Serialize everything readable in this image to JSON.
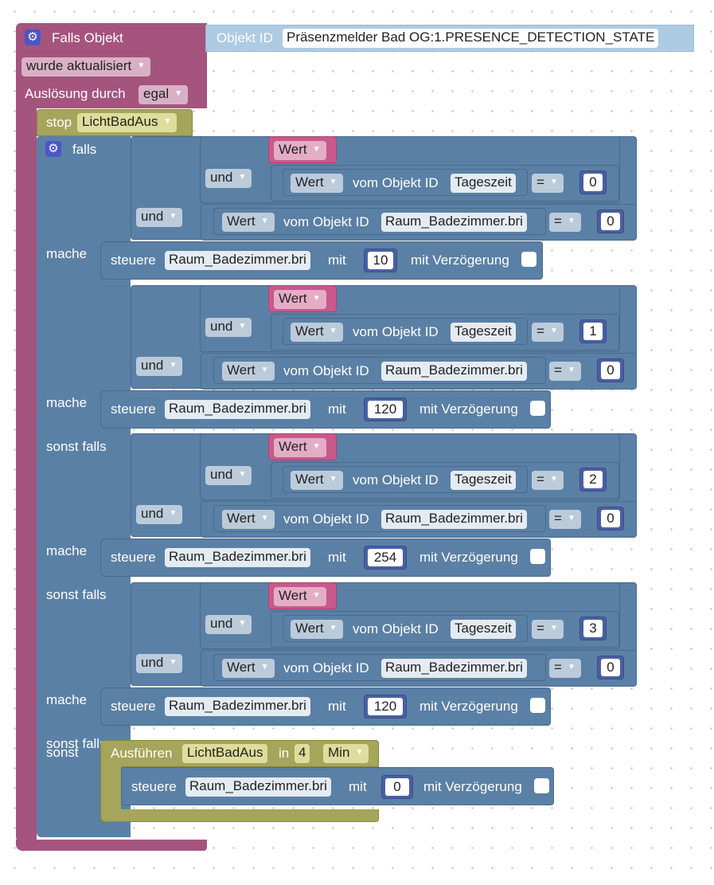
{
  "trigger": {
    "title": "Falls Objekt",
    "object_id_label": "Objekt ID",
    "object_id_value": "Präsenzmelder Bad OG:1.PRESENCE_DETECTION_STATE",
    "event_dropdown": "wurde aktualisiert",
    "trigger_by_label": "Auslösung durch",
    "trigger_by_value": "egal"
  },
  "stop_block": {
    "label": "stop",
    "timer": "LichtBadAus"
  },
  "if_block": {
    "falls": "falls",
    "sonst_falls": "sonst falls",
    "mache": "mache",
    "sonst": "sonst"
  },
  "common": {
    "und": "und",
    "wert": "Wert",
    "vom_objekt_id": "vom Objekt ID",
    "tageszeit": "Tageszeit",
    "raum": "Raum_Badezimmer.bri",
    "eq": "=",
    "zero": "0",
    "steuere": "steuere",
    "mit": "mit",
    "mit_verzoegerung": "mit Verzögerung"
  },
  "branches": [
    {
      "label": "falls",
      "tageszeit_value": "0",
      "bri_value": "10"
    },
    {
      "label": "sonst falls",
      "tageszeit_value": "1",
      "bri_value": "120"
    },
    {
      "label": "sonst falls",
      "tageszeit_value": "2",
      "bri_value": "254"
    },
    {
      "label": "sonst falls",
      "tageszeit_value": "3",
      "bri_value": "120"
    }
  ],
  "else_block": {
    "ausfuehren": "Ausführen",
    "timer": "LichtBadAus",
    "in": "in",
    "delay": "4",
    "unit": "Min",
    "bri_value": "0"
  },
  "colors": {
    "event": "#a5547d",
    "logic": "#5b80a5",
    "timer": "#a5a55b",
    "value": "#c8598c",
    "number": "#4a5fa2"
  },
  "icons": {
    "gear": "gear-icon",
    "dropdown": "dropdown-arrow-icon"
  }
}
